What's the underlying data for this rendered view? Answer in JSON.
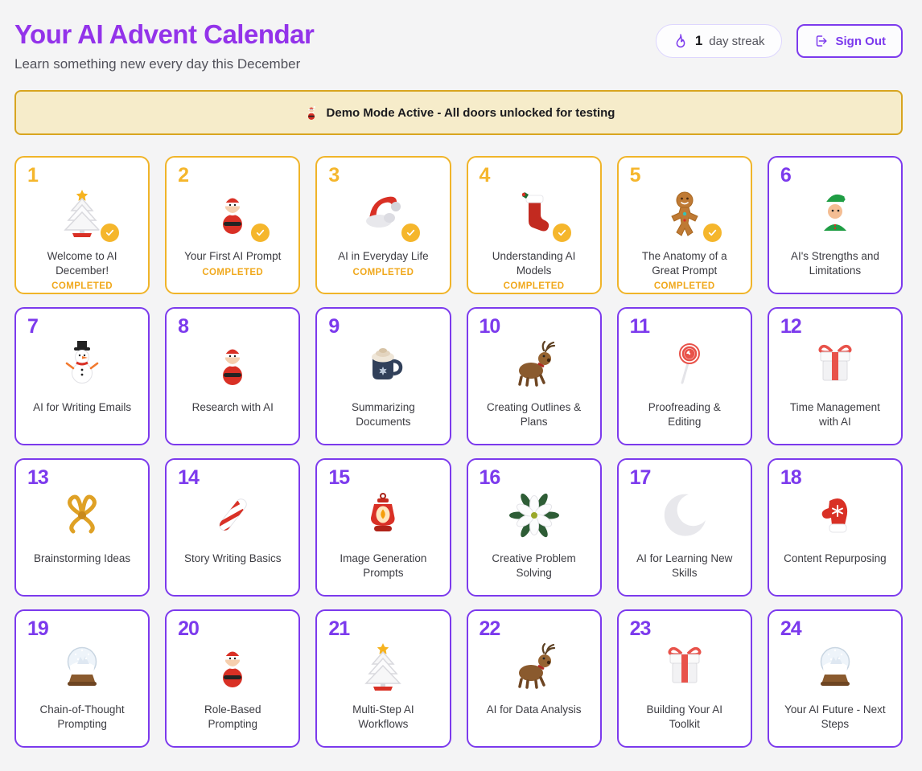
{
  "header": {
    "title": "Your AI Advent Calendar",
    "subtitle": "Learn something new every day this December"
  },
  "streak": {
    "count": "1",
    "label": "day streak",
    "icon": "flame-icon"
  },
  "sign_out": {
    "label": "Sign Out",
    "icon": "sign-out-icon"
  },
  "banner": {
    "icon": "santa-icon",
    "text": "Demo Mode Active - All doors unlocked for testing"
  },
  "status_completed_label": "COMPLETED",
  "colors": {
    "title_purple": "#9333ea",
    "accent_purple": "#7c3aed",
    "completed_amber": "#f0b429",
    "banner_bg": "#f6ecca",
    "banner_border": "#d8a520",
    "page_bg": "#f4f4f5",
    "card_bg": "#ffffff",
    "text_dark": "#27272a",
    "text_muted": "#52525b"
  },
  "doors": [
    {
      "number": "1",
      "title": "Welcome to AI December!",
      "icon": "christmas-tree",
      "completed": true
    },
    {
      "number": "2",
      "title": "Your First AI Prompt",
      "icon": "santa",
      "completed": true
    },
    {
      "number": "3",
      "title": "AI in Everyday Life",
      "icon": "santa-hat",
      "completed": true
    },
    {
      "number": "4",
      "title": "Understanding AI Models",
      "icon": "stocking",
      "completed": true
    },
    {
      "number": "5",
      "title": "The Anatomy of a Great Prompt",
      "icon": "gingerbread",
      "completed": true
    },
    {
      "number": "6",
      "title": "AI's Strengths and Limitations",
      "icon": "elf",
      "completed": false
    },
    {
      "number": "7",
      "title": "AI for Writing Emails",
      "icon": "snowman",
      "completed": false
    },
    {
      "number": "8",
      "title": "Research with AI",
      "icon": "santa",
      "completed": false
    },
    {
      "number": "9",
      "title": "Summarizing Documents",
      "icon": "cocoa",
      "completed": false
    },
    {
      "number": "10",
      "title": "Creating Outlines & Plans",
      "icon": "reindeer",
      "completed": false
    },
    {
      "number": "11",
      "title": "Proofreading & Editing",
      "icon": "lollipop",
      "completed": false
    },
    {
      "number": "12",
      "title": "Time Management with AI",
      "icon": "gift",
      "completed": false
    },
    {
      "number": "13",
      "title": "Brainstorming Ideas",
      "icon": "bow",
      "completed": false
    },
    {
      "number": "14",
      "title": "Story Writing Basics",
      "icon": "candy-cane",
      "completed": false
    },
    {
      "number": "15",
      "title": "Image Generation Prompts",
      "icon": "lantern",
      "completed": false
    },
    {
      "number": "16",
      "title": "Creative Problem Solving",
      "icon": "poinsettia",
      "completed": false
    },
    {
      "number": "17",
      "title": "AI for Learning New Skills",
      "icon": "moon",
      "completed": false
    },
    {
      "number": "18",
      "title": "Content Repurposing",
      "icon": "mitten",
      "completed": false
    },
    {
      "number": "19",
      "title": "Chain-of-Thought Prompting",
      "icon": "snow-globe",
      "completed": false
    },
    {
      "number": "20",
      "title": "Role-Based Prompting",
      "icon": "santa",
      "completed": false
    },
    {
      "number": "21",
      "title": "Multi-Step AI Workflows",
      "icon": "christmas-tree",
      "completed": false
    },
    {
      "number": "22",
      "title": "AI for Data Analysis",
      "icon": "reindeer",
      "completed": false
    },
    {
      "number": "23",
      "title": "Building Your AI Toolkit",
      "icon": "gift",
      "completed": false
    },
    {
      "number": "24",
      "title": "Your AI Future - Next Steps",
      "icon": "snow-globe",
      "completed": false
    }
  ]
}
